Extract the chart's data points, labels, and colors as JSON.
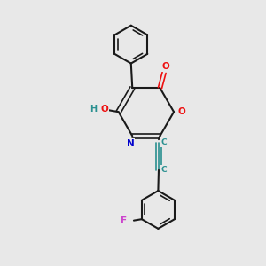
{
  "background_color": "#e8e8e8",
  "bond_color": "#1a1a1a",
  "oxygen_color": "#ee1111",
  "nitrogen_color": "#0000cc",
  "fluorine_color": "#cc44cc",
  "teal_color": "#2a9090",
  "figsize": [
    3.0,
    3.0
  ],
  "dpi": 100,
  "xlim": [
    0,
    10
  ],
  "ylim": [
    0,
    10
  ]
}
